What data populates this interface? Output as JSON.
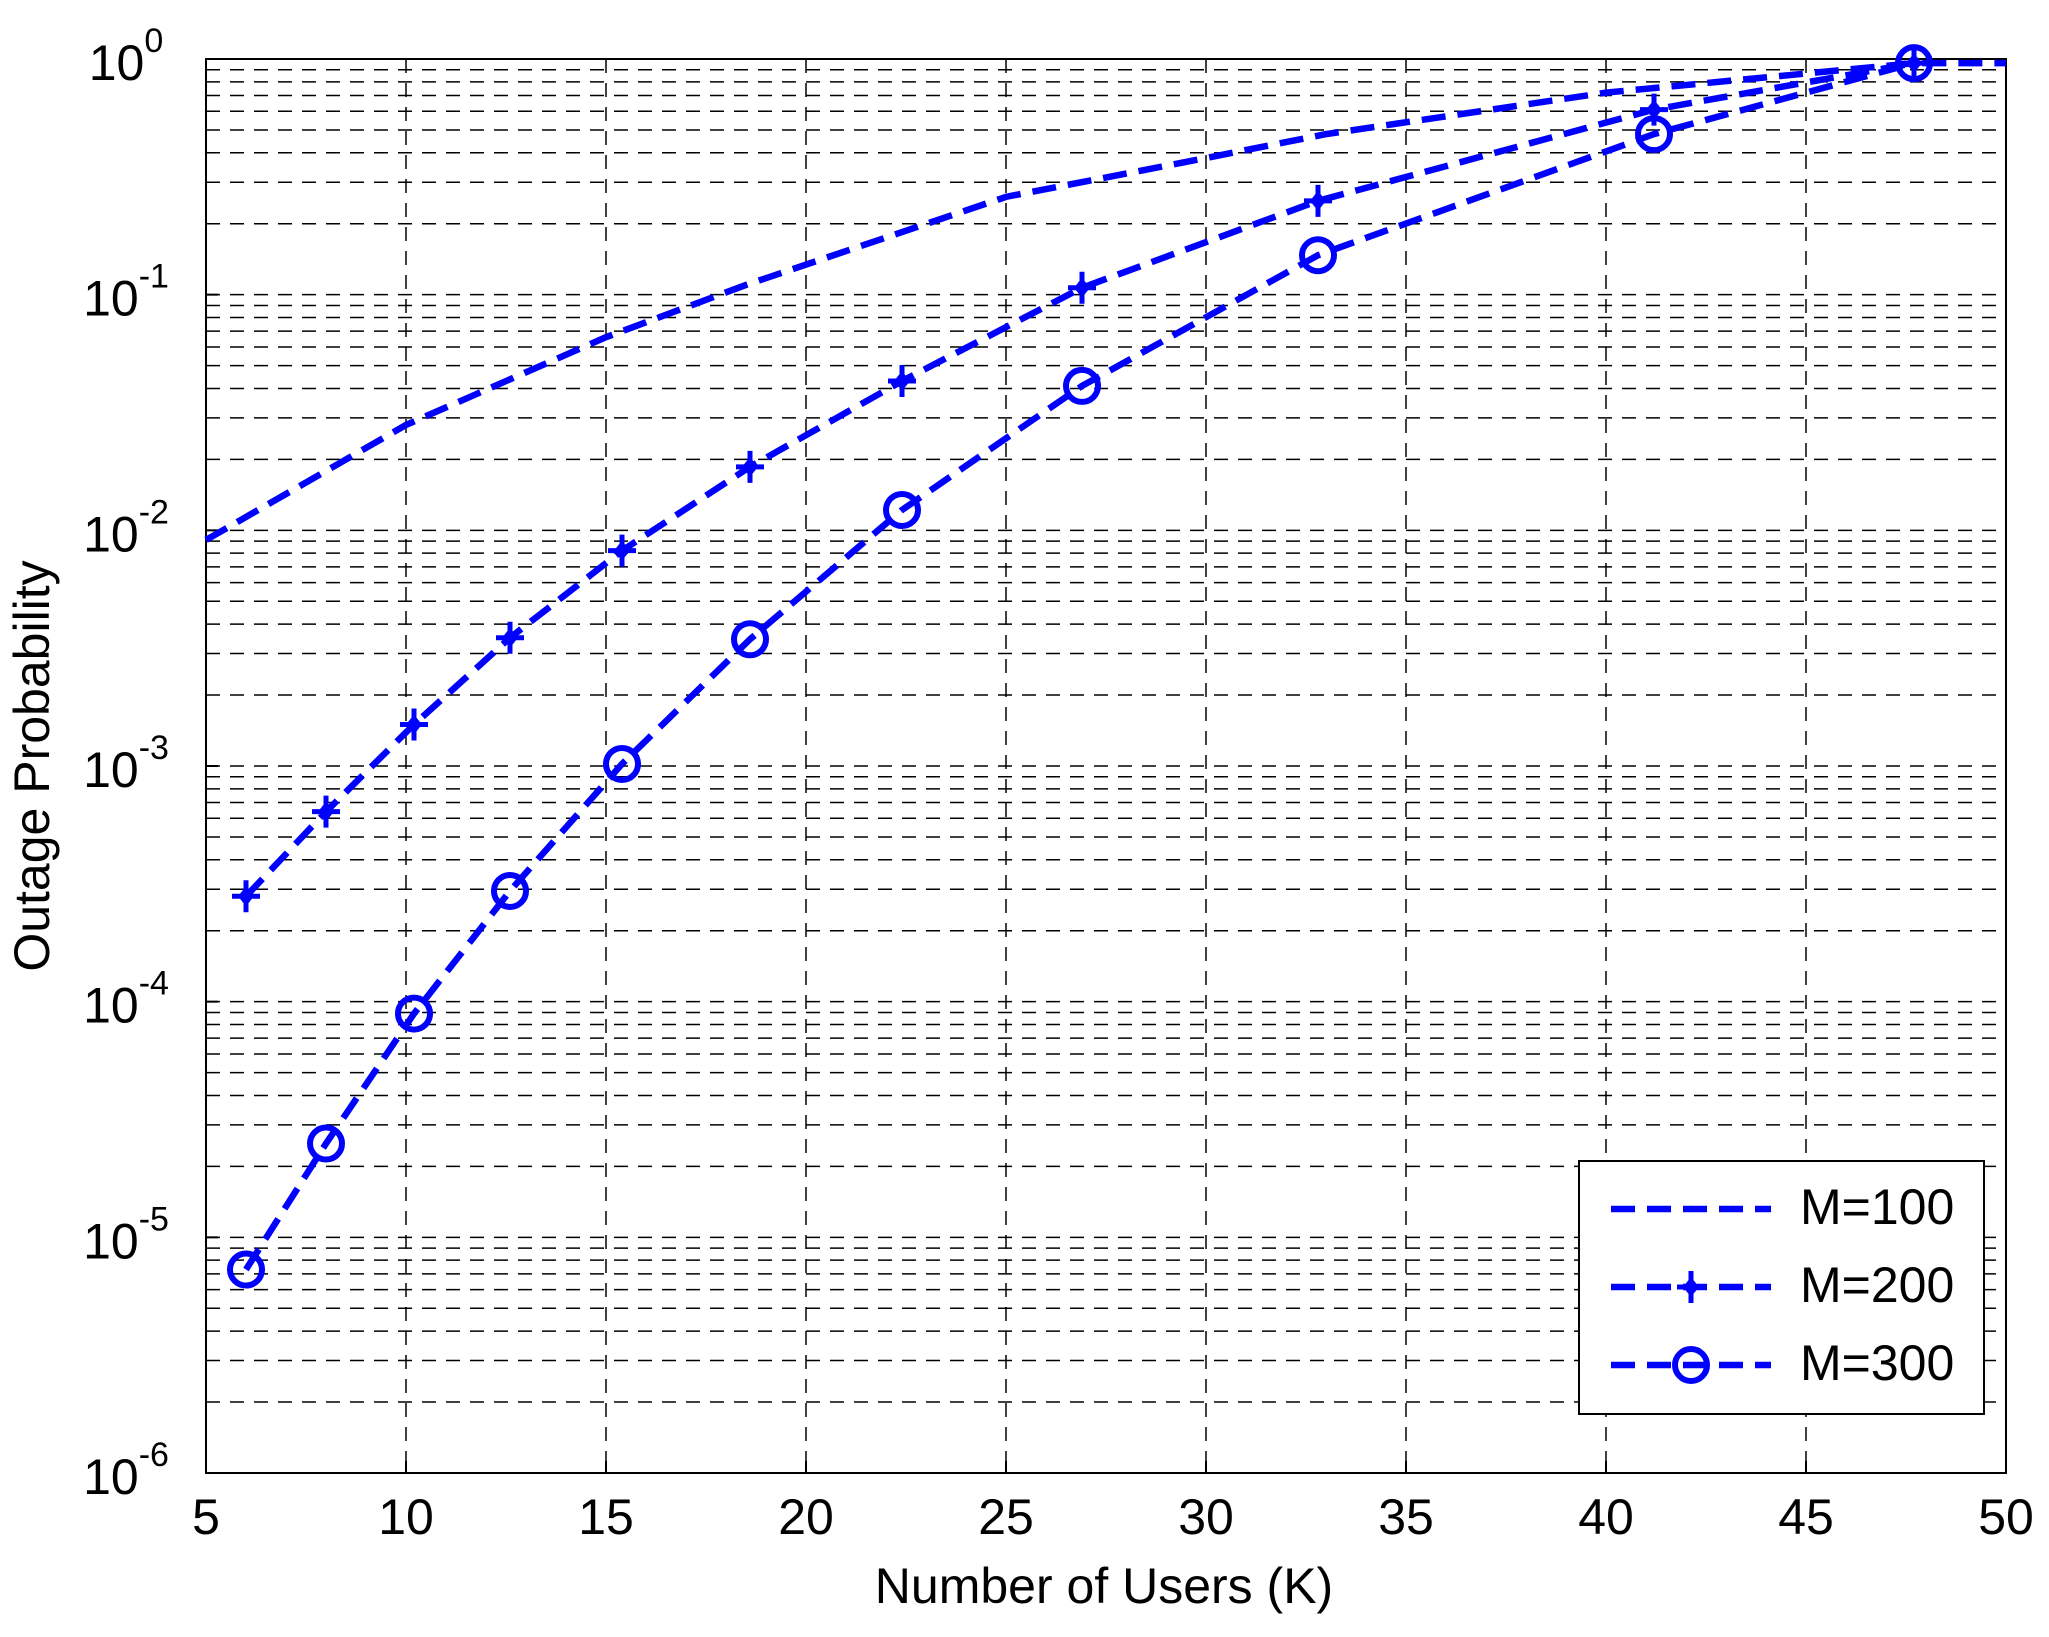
{
  "chart_data": {
    "type": "line",
    "xlabel": "Number of Users (K)",
    "ylabel": "Outage Probability",
    "xlim": [
      5,
      50
    ],
    "xticks": [
      5,
      10,
      15,
      20,
      25,
      30,
      35,
      40,
      45,
      50
    ],
    "ylim": [
      1e-06,
      1
    ],
    "log_y": true,
    "grid": true,
    "minor_grid": true,
    "legend": "lower right",
    "yticks": [
      {
        "value": 1e-06,
        "label": "10",
        "exponent": "-6"
      },
      {
        "value": 1e-05,
        "label": "10",
        "exponent": "-5"
      },
      {
        "value": 0.0001,
        "label": "10",
        "exponent": "-4"
      },
      {
        "value": 0.001,
        "label": "10",
        "exponent": "-3"
      },
      {
        "value": 0.01,
        "label": "10",
        "exponent": "-2"
      },
      {
        "value": 0.1,
        "label": "10",
        "exponent": "-1"
      },
      {
        "value": 1,
        "label": "10",
        "exponent": "0"
      }
    ],
    "series": [
      {
        "name": "M=100",
        "color": "#0000ff",
        "marker": "none",
        "x": [
          5,
          10,
          15,
          18.5,
          25,
          30,
          33,
          40,
          47.7,
          50
        ],
        "values": [
          0.0091,
          0.028,
          0.066,
          0.11,
          0.26,
          0.38,
          0.48,
          0.72,
          0.96,
          0.96
        ]
      },
      {
        "name": "M=200",
        "color": "#0000ff",
        "marker": "plus",
        "x": [
          6,
          8,
          10.2,
          12.6,
          15.4,
          18.6,
          22.4,
          26.9,
          32.8,
          41.2,
          47.7
        ],
        "values": [
          0.00028,
          0.00064,
          0.0015,
          0.0035,
          0.0082,
          0.0186,
          0.043,
          0.107,
          0.25,
          0.61,
          0.96
        ]
      },
      {
        "name": "M=300",
        "color": "#0000ff",
        "marker": "circle",
        "x": [
          6,
          8,
          10.2,
          12.6,
          15.4,
          18.6,
          22.4,
          26.9,
          32.8,
          41.2,
          47.7
        ],
        "values": [
          7.3e-06,
          2.5e-05,
          8.9e-05,
          0.000295,
          0.00102,
          0.00345,
          0.0122,
          0.041,
          0.147,
          0.48,
          0.96
        ]
      }
    ]
  }
}
